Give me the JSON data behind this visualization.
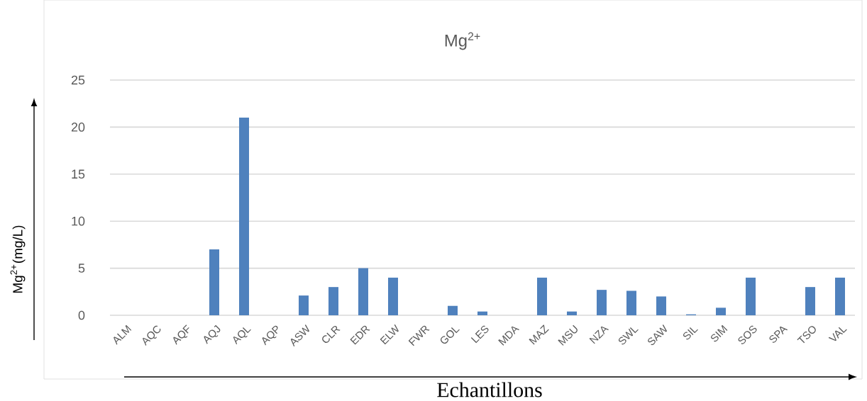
{
  "chart_data": {
    "type": "bar",
    "title": "Mg$^{2+}$",
    "xlabel": "Echantillons",
    "ylabel": "Mg$^{2+}$(mg/L)",
    "categories": [
      "ALM",
      "AQC",
      "AQF",
      "AQJ",
      "AQL",
      "AQP",
      "ASW",
      "CLR",
      "EDR",
      "ELW",
      "FWR",
      "GOL",
      "LES",
      "MDA",
      "MAZ",
      "MSU",
      "NZA",
      "SWL",
      "SAW",
      "SIL",
      "SIM",
      "SOS",
      "SPA",
      "TSO",
      "VAL"
    ],
    "values": [
      0,
      0,
      0,
      7,
      21,
      0,
      2.1,
      3,
      5,
      4,
      0,
      1,
      0.4,
      0,
      4,
      0.4,
      2.7,
      2.6,
      2,
      0.1,
      0.8,
      4,
      0,
      3,
      4
    ],
    "color": "#4f81bd",
    "ylim": [
      0,
      25
    ],
    "yticks": [
      0,
      5,
      10,
      15,
      20,
      25
    ],
    "grid": "y"
  }
}
